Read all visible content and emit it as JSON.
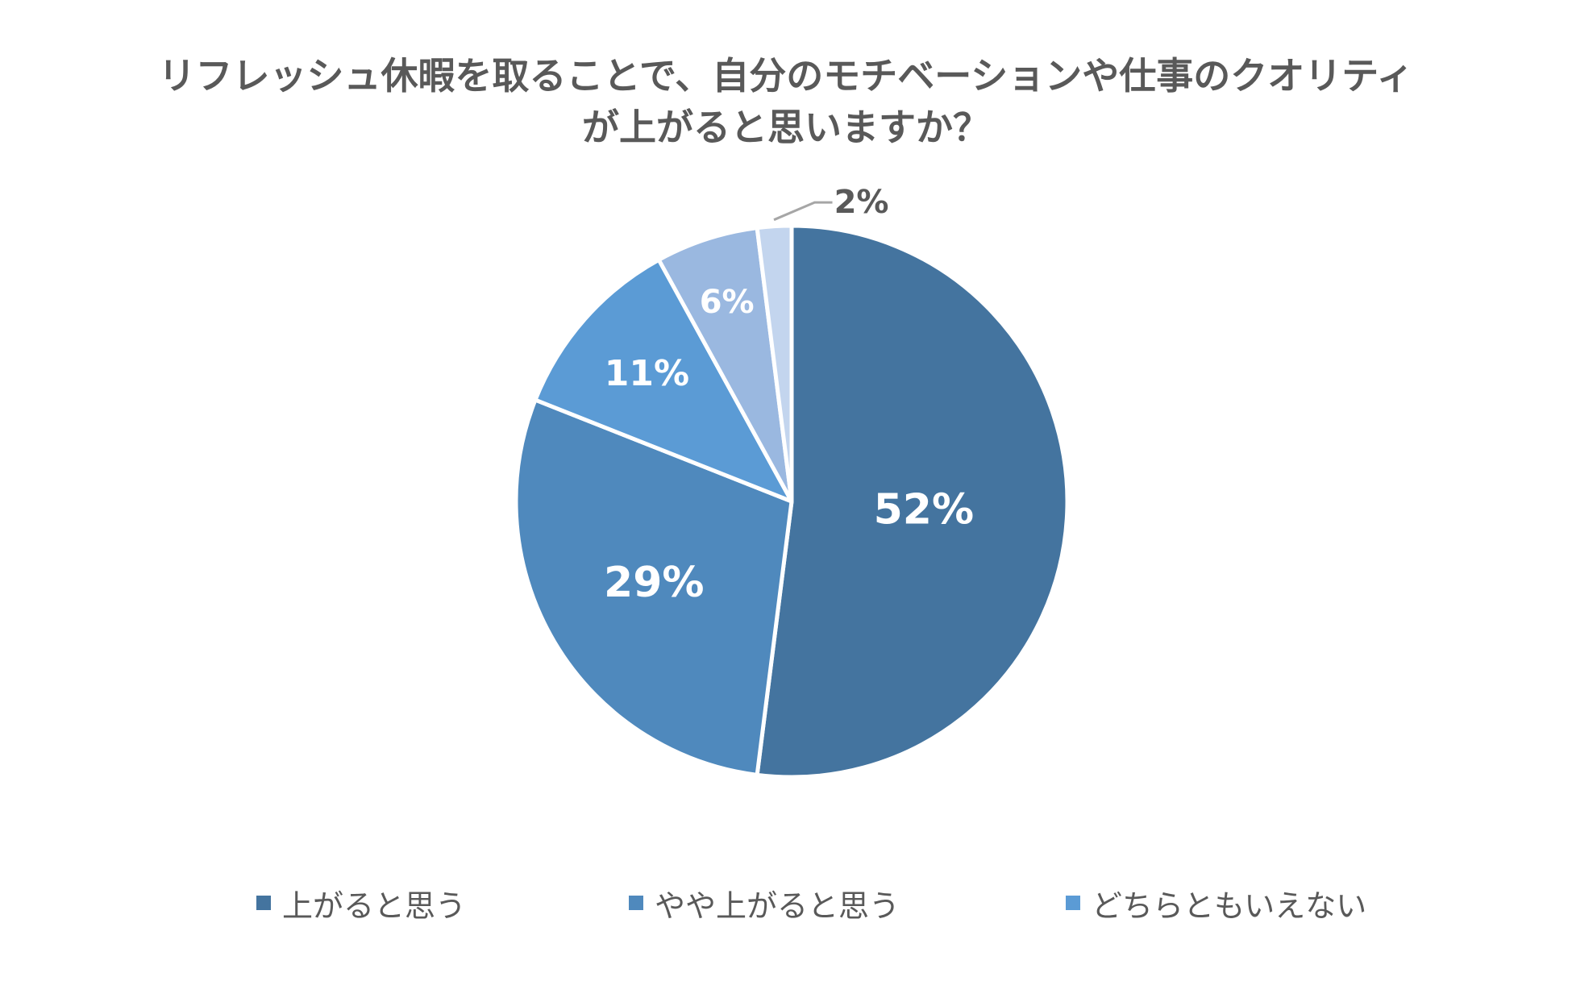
{
  "chart_data": {
    "type": "pie",
    "title_lines": [
      "リフレッシュ休暇を取ることで、自分のモチベーションや仕事のクオリティ",
      "が上がると思いますか？"
    ],
    "categories": [
      "上がると思う",
      "やや上がると思う",
      "どちらともいえない",
      "",
      ""
    ],
    "values": [
      52,
      29,
      11,
      6,
      2
    ],
    "data_labels": [
      "52%",
      "29%",
      "11%",
      "6%",
      "2%"
    ],
    "colors": [
      "#44749f",
      "#4f89bd",
      "#5b9bd5",
      "#9ab8e0",
      "#c3d5ee"
    ],
    "legend_position": "bottom"
  }
}
